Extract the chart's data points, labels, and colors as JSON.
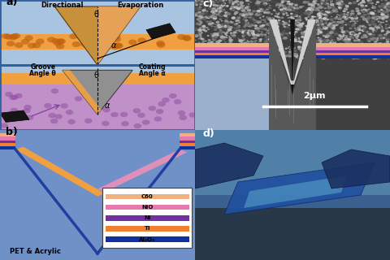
{
  "panel_a": {
    "label": "a)",
    "bg_color": "#a8c4e0",
    "divider_color": "#4070b0",
    "top": {
      "title_left": "Directional",
      "title_right": "Evaporation",
      "orange_layer_color": "#f0a040",
      "groove_tan": "#c8903a",
      "groove_outline": "#5a3a10"
    },
    "bottom": {
      "label_left1": "Groove",
      "label_left2": "Angle θ",
      "label_right1": "Coating",
      "label_right2": "Angle α",
      "gray_groove": "#909090",
      "orange_layer": "#f0a040",
      "purple_bg": "#c090c8",
      "purple_dots": "#9050a0"
    },
    "evap_color": "#202020"
  },
  "panel_b": {
    "label": "b)",
    "bg_color": "#90b8e0",
    "substrate_color": "#7090c8",
    "groove_edge_color": "#2040a0",
    "left_wall_color": "#f0a040",
    "right_wall_color": "#e090b8",
    "layer_colors": [
      "#1030a0",
      "#f08030",
      "#7030a0",
      "#e878b0",
      "#f0b080"
    ],
    "layer_labels": [
      "Al₂O₃",
      "Ti",
      "Ni",
      "NiO",
      "C60"
    ],
    "legend_colors": [
      "#f0b080",
      "#e878b0",
      "#7030a0",
      "#f08030",
      "#1030a0"
    ],
    "legend_labels": [
      "C60",
      "NiO",
      "Ni",
      "Ti",
      "Al₂O₃"
    ],
    "text_bottom": "PET & Acrylic"
  },
  "panel_c": {
    "label": "c)",
    "sem_dark": "#383838",
    "sem_light": "#c0c0c0",
    "layer_colors": [
      "#1030a0",
      "#f08030",
      "#7030a0",
      "#e878b0",
      "#f0b080"
    ],
    "bottom_blue": "#9ab0cc",
    "scale_bar": "2μm"
  },
  "panel_d": {
    "label": "d)",
    "sky_color": "#4878a8",
    "device_color": "#2858a0"
  }
}
